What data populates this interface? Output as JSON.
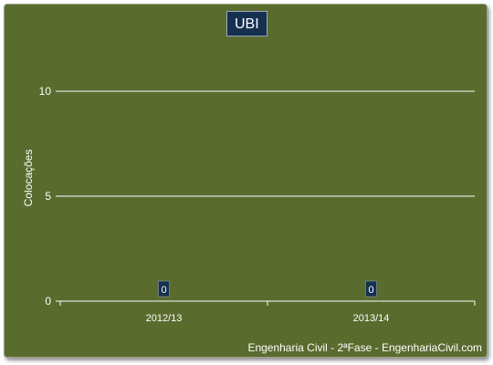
{
  "chart_data": {
    "type": "bar",
    "title": "UBI",
    "categories": [
      "2012/13",
      "2013/14"
    ],
    "values": [
      0,
      0
    ],
    "ylabel": "Colocações",
    "xlabel": "",
    "ylim": [
      0,
      10
    ],
    "yticks": [
      "0",
      "5",
      "10"
    ],
    "data_labels": [
      "0",
      "0"
    ],
    "grid": true,
    "legend": "none"
  },
  "footer": "Engenharia Civil - 2ªFase - EngenhariaCivil.com",
  "colors": {
    "background": "#5a6b2e",
    "title_box": "#16304f",
    "gridline": "#ffffff",
    "text": "#ffffff"
  }
}
